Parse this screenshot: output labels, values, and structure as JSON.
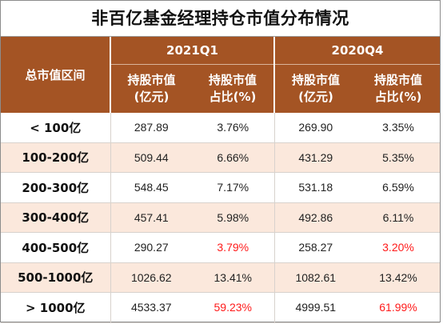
{
  "title": "非百亿基金经理持仓市值分布情况",
  "header": {
    "range_label": "总市值区间",
    "periods": [
      "2021Q1",
      "2020Q4"
    ],
    "value_label_line1": "持股市值",
    "value_label_line2": "(亿元)",
    "ratio_label_line1": "持股市值",
    "ratio_label_line2": "占比(%)"
  },
  "highlight_color": "#ff1a1a",
  "rows": [
    {
      "range": "< 100亿",
      "q1_value": "287.89",
      "q1_ratio": "3.76%",
      "q4_value": "269.90",
      "q4_ratio": "3.35%",
      "highlight": false
    },
    {
      "range": "100-200亿",
      "q1_value": "509.44",
      "q1_ratio": "6.66%",
      "q4_value": "431.29",
      "q4_ratio": "5.35%",
      "highlight": false
    },
    {
      "range": "200-300亿",
      "q1_value": "548.45",
      "q1_ratio": "7.17%",
      "q4_value": "531.18",
      "q4_ratio": "6.59%",
      "highlight": false
    },
    {
      "range": "300-400亿",
      "q1_value": "457.41",
      "q1_ratio": "5.98%",
      "q4_value": "492.86",
      "q4_ratio": "6.11%",
      "highlight": false
    },
    {
      "range": "400-500亿",
      "q1_value": "290.27",
      "q1_ratio": "3.79%",
      "q4_value": "258.27",
      "q4_ratio": "3.20%",
      "highlight": true
    },
    {
      "range": "500-1000亿",
      "q1_value": "1026.62",
      "q1_ratio": "13.41%",
      "q4_value": "1082.61",
      "q4_ratio": "13.42%",
      "highlight": false
    },
    {
      "range": "> 1000亿",
      "q1_value": "4533.37",
      "q1_ratio": "59.23%",
      "q4_value": "4999.51",
      "q4_ratio": "61.99%",
      "highlight": true
    }
  ]
}
